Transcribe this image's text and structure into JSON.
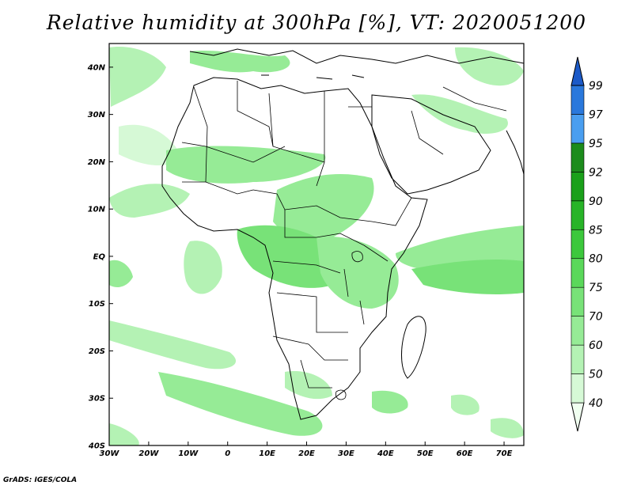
{
  "title": "Relative humidity at 300hPa [%], VT: 2020051200",
  "credit": "GrADS: IGES/COLA",
  "map": {
    "lon_range": [
      -30,
      75
    ],
    "lat_range": [
      -40,
      45
    ],
    "x_ticks": [
      "30W",
      "20W",
      "10W",
      "0",
      "10E",
      "20E",
      "30E",
      "40E",
      "50E",
      "60E",
      "70E"
    ],
    "x_tick_values": [
      -30,
      -20,
      -10,
      0,
      10,
      20,
      30,
      40,
      50,
      60,
      70
    ],
    "y_ticks": [
      "40S",
      "30S",
      "20S",
      "10S",
      "EQ",
      "10N",
      "20N",
      "30N",
      "40N"
    ],
    "y_tick_values": [
      -40,
      -30,
      -20,
      -10,
      0,
      10,
      20,
      30,
      40
    ]
  },
  "colorbar": {
    "levels": [
      "40",
      "50",
      "60",
      "70",
      "75",
      "80",
      "85",
      "90",
      "92",
      "95",
      "97",
      "99"
    ],
    "colors": [
      "#f0fff0",
      "#d6f9d6",
      "#b4f2b4",
      "#96eb96",
      "#78e278",
      "#5ad85a",
      "#3cc83c",
      "#28b428",
      "#1aa01a",
      "#1c8c1c",
      "#4a9ef0",
      "#2a78dc",
      "#1c5ac8"
    ]
  }
}
